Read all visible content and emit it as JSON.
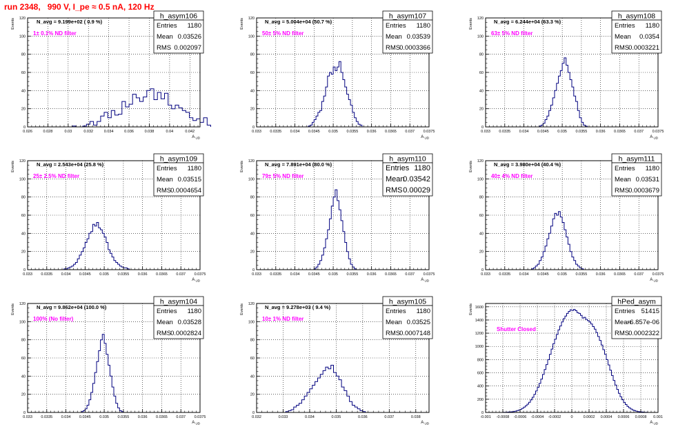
{
  "page": {
    "title": "run 2348,   990 V, I_pe ≈ 0.5 nA, 120 Hz"
  },
  "colors": {
    "title": "#ff0000",
    "annotation": "#ff00ff",
    "hist": "#00007f",
    "frame": "#000000",
    "grid": "#000000"
  },
  "chart_data": [
    {
      "type": "histogram",
      "name": "h_asym106",
      "ylabel": "Events",
      "xlabel": "A_ UD",
      "nlabel": "N_avg = 9.199e+02 ( 0.9 %)",
      "annotation": "1± 0.1% ND filter",
      "stats": {
        "entries": "1180",
        "mean": "0.03526",
        "rms": "0.002097"
      },
      "xlim": [
        0.026,
        0.043
      ],
      "ylim": [
        0,
        120
      ],
      "xticks": [
        0.026,
        0.028,
        0.03,
        0.032,
        0.034,
        0.036,
        0.038,
        0.04,
        0.042
      ],
      "xtick_labels": [
        "0.026",
        "0.028",
        "0.03",
        "0.032",
        "0.034",
        "0.036",
        "0.038",
        "0.04",
        "0.042"
      ],
      "yticks": [
        0,
        20,
        40,
        60,
        80,
        100,
        120
      ],
      "grid": true,
      "bins": {
        "start": 0.0304,
        "width": 0.00035,
        "values": [
          1,
          0,
          0,
          1,
          3,
          6,
          2,
          6,
          12,
          16,
          10,
          18,
          13,
          14,
          28,
          22,
          25,
          36,
          32,
          28,
          33,
          40,
          42,
          30,
          38,
          31,
          37,
          24,
          20,
          24,
          21,
          18,
          16,
          10,
          7,
          9,
          5,
          10,
          2
        ]
      }
    },
    {
      "type": "histogram",
      "name": "h_asym107",
      "ylabel": "Events",
      "xlabel": "A_ UD",
      "nlabel": "N_avg = 5.004e+04 (50.7 %)",
      "annotation": "50± 5% ND filter",
      "stats": {
        "entries": "1180",
        "mean": "0.03539",
        "rms": "0.0003366"
      },
      "xlim": [
        0.033,
        0.0375
      ],
      "ylim": [
        0,
        120
      ],
      "xticks": [
        0.033,
        0.0335,
        0.034,
        0.0345,
        0.035,
        0.0355,
        0.036,
        0.0365,
        0.037,
        0.0375
      ],
      "xtick_labels": [
        "0.033",
        "0.0335",
        "0.034",
        "0.0345",
        "0.035",
        "0.0355",
        "0.036",
        "0.0365",
        "0.037",
        "0.0375"
      ],
      "yticks": [
        0,
        20,
        40,
        60,
        80,
        100,
        120
      ],
      "grid": true,
      "bins": {
        "start": 0.03435,
        "width": 5e-05,
        "values": [
          1,
          2,
          5,
          8,
          12,
          16,
          18,
          28,
          34,
          44,
          56,
          60,
          58,
          66,
          62,
          66,
          72,
          60,
          52,
          44,
          36,
          30,
          24,
          16,
          10,
          6,
          3,
          2
        ]
      }
    },
    {
      "type": "histogram",
      "name": "h_asym108",
      "ylabel": "Events",
      "xlabel": "A_ UD",
      "nlabel": "N_avg = 6.244e+04 (63.3 %)",
      "annotation": "63± 5% ND filter",
      "stats": {
        "entries": "1180",
        "mean": "0.0354",
        "rms": "0.0003221"
      },
      "xlim": [
        0.033,
        0.0375
      ],
      "ylim": [
        0,
        120
      ],
      "xticks": [
        0.033,
        0.0335,
        0.034,
        0.0345,
        0.035,
        0.0355,
        0.036,
        0.0365,
        0.037,
        0.0375
      ],
      "xtick_labels": [
        "0.033",
        "0.0335",
        "0.034",
        "0.0345",
        "0.035",
        "0.0355",
        "0.036",
        "0.0365",
        "0.037",
        "0.0375"
      ],
      "yticks": [
        0,
        20,
        40,
        60,
        80,
        100,
        120
      ],
      "grid": true,
      "bins": {
        "start": 0.0344,
        "width": 5e-05,
        "values": [
          1,
          2,
          4,
          8,
          12,
          18,
          24,
          32,
          40,
          48,
          56,
          62,
          70,
          76,
          68,
          60,
          52,
          44,
          34,
          28,
          18,
          10,
          5,
          2,
          1
        ]
      }
    },
    {
      "type": "histogram",
      "name": "h_asym109",
      "ylabel": "Events",
      "xlabel": "A_ UD",
      "nlabel": "N_avg = 2.543e+04 (25.8 %)",
      "annotation": "25± 2.5% ND filter",
      "stats": {
        "entries": "1180",
        "mean": "0.03515",
        "rms": "0.0004654"
      },
      "xlim": [
        0.033,
        0.0375
      ],
      "ylim": [
        0,
        120
      ],
      "xticks": [
        0.033,
        0.0335,
        0.034,
        0.0345,
        0.035,
        0.0355,
        0.036,
        0.0365,
        0.037,
        0.0375
      ],
      "xtick_labels": [
        "0.033",
        "0.0335",
        "0.034",
        "0.0345",
        "0.035",
        "0.0355",
        "0.036",
        "0.0365",
        "0.037",
        "0.0375"
      ],
      "yticks": [
        0,
        20,
        40,
        60,
        80,
        100,
        120
      ],
      "grid": true,
      "bins": {
        "start": 0.03395,
        "width": 5e-05,
        "values": [
          1,
          1,
          2,
          3,
          4,
          6,
          8,
          12,
          16,
          20,
          24,
          30,
          34,
          40,
          42,
          50,
          48,
          52,
          46,
          44,
          40,
          36,
          30,
          22,
          18,
          14,
          10,
          8,
          6,
          4,
          3,
          2,
          2,
          1
        ]
      }
    },
    {
      "type": "histogram",
      "name": "h_asym110",
      "ylabel": "Events",
      "xlabel": "A_ UD",
      "nlabel": "N_avg = 7.891e+04 (80.0 %)",
      "annotation": "79± 5% ND filter",
      "stats": {
        "entries": "1180",
        "mean": "0.03542",
        "rms": "0.00029"
      },
      "xlim": [
        0.033,
        0.0375
      ],
      "ylim": [
        0,
        120
      ],
      "xticks": [
        0.033,
        0.0335,
        0.034,
        0.0345,
        0.035,
        0.0355,
        0.036,
        0.0365,
        0.037,
        0.0375
      ],
      "xtick_labels": [
        "0.033",
        "0.0335",
        "0.034",
        "0.0345",
        "0.035",
        "0.0355",
        "0.036",
        "0.0365",
        "0.037",
        "0.0375"
      ],
      "yticks": [
        0,
        20,
        40,
        60,
        80,
        100,
        120
      ],
      "grid": true,
      "bins": {
        "start": 0.0345,
        "width": 5e-05,
        "values": [
          1,
          3,
          6,
          10,
          16,
          24,
          34,
          44,
          56,
          70,
          80,
          88,
          76,
          66,
          54,
          42,
          30,
          20,
          12,
          6,
          3,
          1
        ]
      }
    },
    {
      "type": "histogram",
      "name": "h_asym111",
      "ylabel": "Events",
      "xlabel": "A_ UD",
      "nlabel": "N_avg = 3.980e+04 (40.4 %)",
      "annotation": "40± 4% ND filter",
      "stats": {
        "entries": "1180",
        "mean": "0.03531",
        "rms": "0.0003679"
      },
      "xlim": [
        0.033,
        0.0375
      ],
      "ylim": [
        0,
        120
      ],
      "xticks": [
        0.033,
        0.0335,
        0.034,
        0.0345,
        0.035,
        0.0355,
        0.036,
        0.0365,
        0.037,
        0.0375
      ],
      "xtick_labels": [
        "0.033",
        "0.0335",
        "0.034",
        "0.0345",
        "0.035",
        "0.0355",
        "0.036",
        "0.0365",
        "0.037",
        "0.0375"
      ],
      "yticks": [
        0,
        20,
        40,
        60,
        80,
        100,
        120
      ],
      "grid": true,
      "bins": {
        "start": 0.0342,
        "width": 5e-05,
        "values": [
          1,
          2,
          4,
          6,
          10,
          14,
          20,
          26,
          34,
          40,
          48,
          56,
          62,
          60,
          64,
          58,
          52,
          44,
          36,
          28,
          20,
          14,
          10,
          6,
          4,
          2,
          1
        ]
      }
    },
    {
      "type": "histogram",
      "name": "h_asym104",
      "ylabel": "Events",
      "xlabel": "A_ UD",
      "nlabel": "N_avg = 9.862e+04 (100.0 %)",
      "annotation": "100% (No filter)",
      "stats": {
        "entries": "1180",
        "mean": "0.03528",
        "rms": "0.0002824"
      },
      "xlim": [
        0.033,
        0.0375
      ],
      "ylim": [
        0,
        120
      ],
      "xticks": [
        0.033,
        0.0335,
        0.034,
        0.0345,
        0.035,
        0.0355,
        0.036,
        0.0365,
        0.037,
        0.0375
      ],
      "xtick_labels": [
        "0.033",
        "0.0335",
        "0.034",
        "0.0345",
        "0.035",
        "0.0355",
        "0.036",
        "0.0365",
        "0.037",
        "0.0375"
      ],
      "yticks": [
        0,
        20,
        40,
        60,
        80,
        100,
        120
      ],
      "grid": true,
      "bins": {
        "start": 0.0344,
        "width": 5e-05,
        "values": [
          1,
          2,
          4,
          8,
          14,
          22,
          32,
          44,
          56,
          68,
          80,
          86,
          76,
          64,
          52,
          40,
          28,
          18,
          10,
          5,
          2,
          1
        ]
      }
    },
    {
      "type": "histogram",
      "name": "h_asym105",
      "ylabel": "Events",
      "xlabel": "A_ UD",
      "nlabel": "N_avg = 9.278e+03 ( 9.4 %)",
      "annotation": "10± 1% ND filter",
      "stats": {
        "entries": "1180",
        "mean": "0.03525",
        "rms": "0.0007148"
      },
      "xlim": [
        0.032,
        0.0385
      ],
      "ylim": [
        0,
        120
      ],
      "xticks": [
        0.032,
        0.033,
        0.034,
        0.035,
        0.036,
        0.037,
        0.038
      ],
      "xtick_labels": [
        "0.032",
        "0.033",
        "0.034",
        "0.035",
        "0.036",
        "0.037",
        "0.038"
      ],
      "yticks": [
        0,
        20,
        40,
        60,
        80,
        100,
        120
      ],
      "grid": true,
      "bins": {
        "start": 0.0331,
        "width": 0.0001,
        "values": [
          1,
          2,
          3,
          6,
          8,
          10,
          14,
          18,
          22,
          26,
          30,
          34,
          38,
          42,
          46,
          50,
          48,
          52,
          44,
          40,
          36,
          28,
          24,
          18,
          12,
          8,
          6,
          4,
          2,
          1
        ]
      }
    },
    {
      "type": "histogram",
      "name": "hPed_asym",
      "ylabel": "Events",
      "xlabel": "A_ UD",
      "nlabel": "",
      "annotation": "Shutter Closed",
      "stats": {
        "entries": "51415",
        "mean": "-6.857e-06",
        "rms": "0.0002322"
      },
      "xlim": [
        -0.001,
        0.001
      ],
      "ylim": [
        0,
        1650
      ],
      "xticks": [
        -0.001,
        -0.0008,
        -0.0006,
        -0.0004,
        -0.0002,
        0,
        0.0002,
        0.0004,
        0.0006,
        0.0008,
        0.001
      ],
      "xtick_labels": [
        "-0.001",
        "-0.0008",
        "-0.0006",
        "-0.0004",
        "-0.0002",
        "0",
        "0.0002",
        "0.0004",
        "0.0006",
        "0.0008",
        "0.001"
      ],
      "yticks": [
        0,
        200,
        400,
        600,
        800,
        1000,
        1200,
        1400,
        1600
      ],
      "grid": true,
      "bins": {
        "start": -0.0008,
        "width": 2e-05,
        "values": [
          2,
          3,
          4,
          6,
          8,
          10,
          14,
          20,
          28,
          36,
          48,
          62,
          80,
          100,
          125,
          155,
          190,
          230,
          275,
          325,
          380,
          440,
          505,
          575,
          650,
          725,
          800,
          880,
          960,
          1040,
          1110,
          1180,
          1250,
          1310,
          1370,
          1420,
          1460,
          1500,
          1530,
          1555,
          1545,
          1560,
          1540,
          1510,
          1500,
          1470,
          1430,
          1440,
          1410,
          1390,
          1370,
          1340,
          1300,
          1260,
          1210,
          1150,
          1090,
          1020,
          950,
          880,
          800,
          720,
          640,
          560,
          485,
          415,
          350,
          290,
          238,
          192,
          152,
          120,
          92,
          70,
          52,
          38,
          28,
          20,
          14,
          10,
          7,
          5,
          3,
          2
        ]
      }
    }
  ]
}
